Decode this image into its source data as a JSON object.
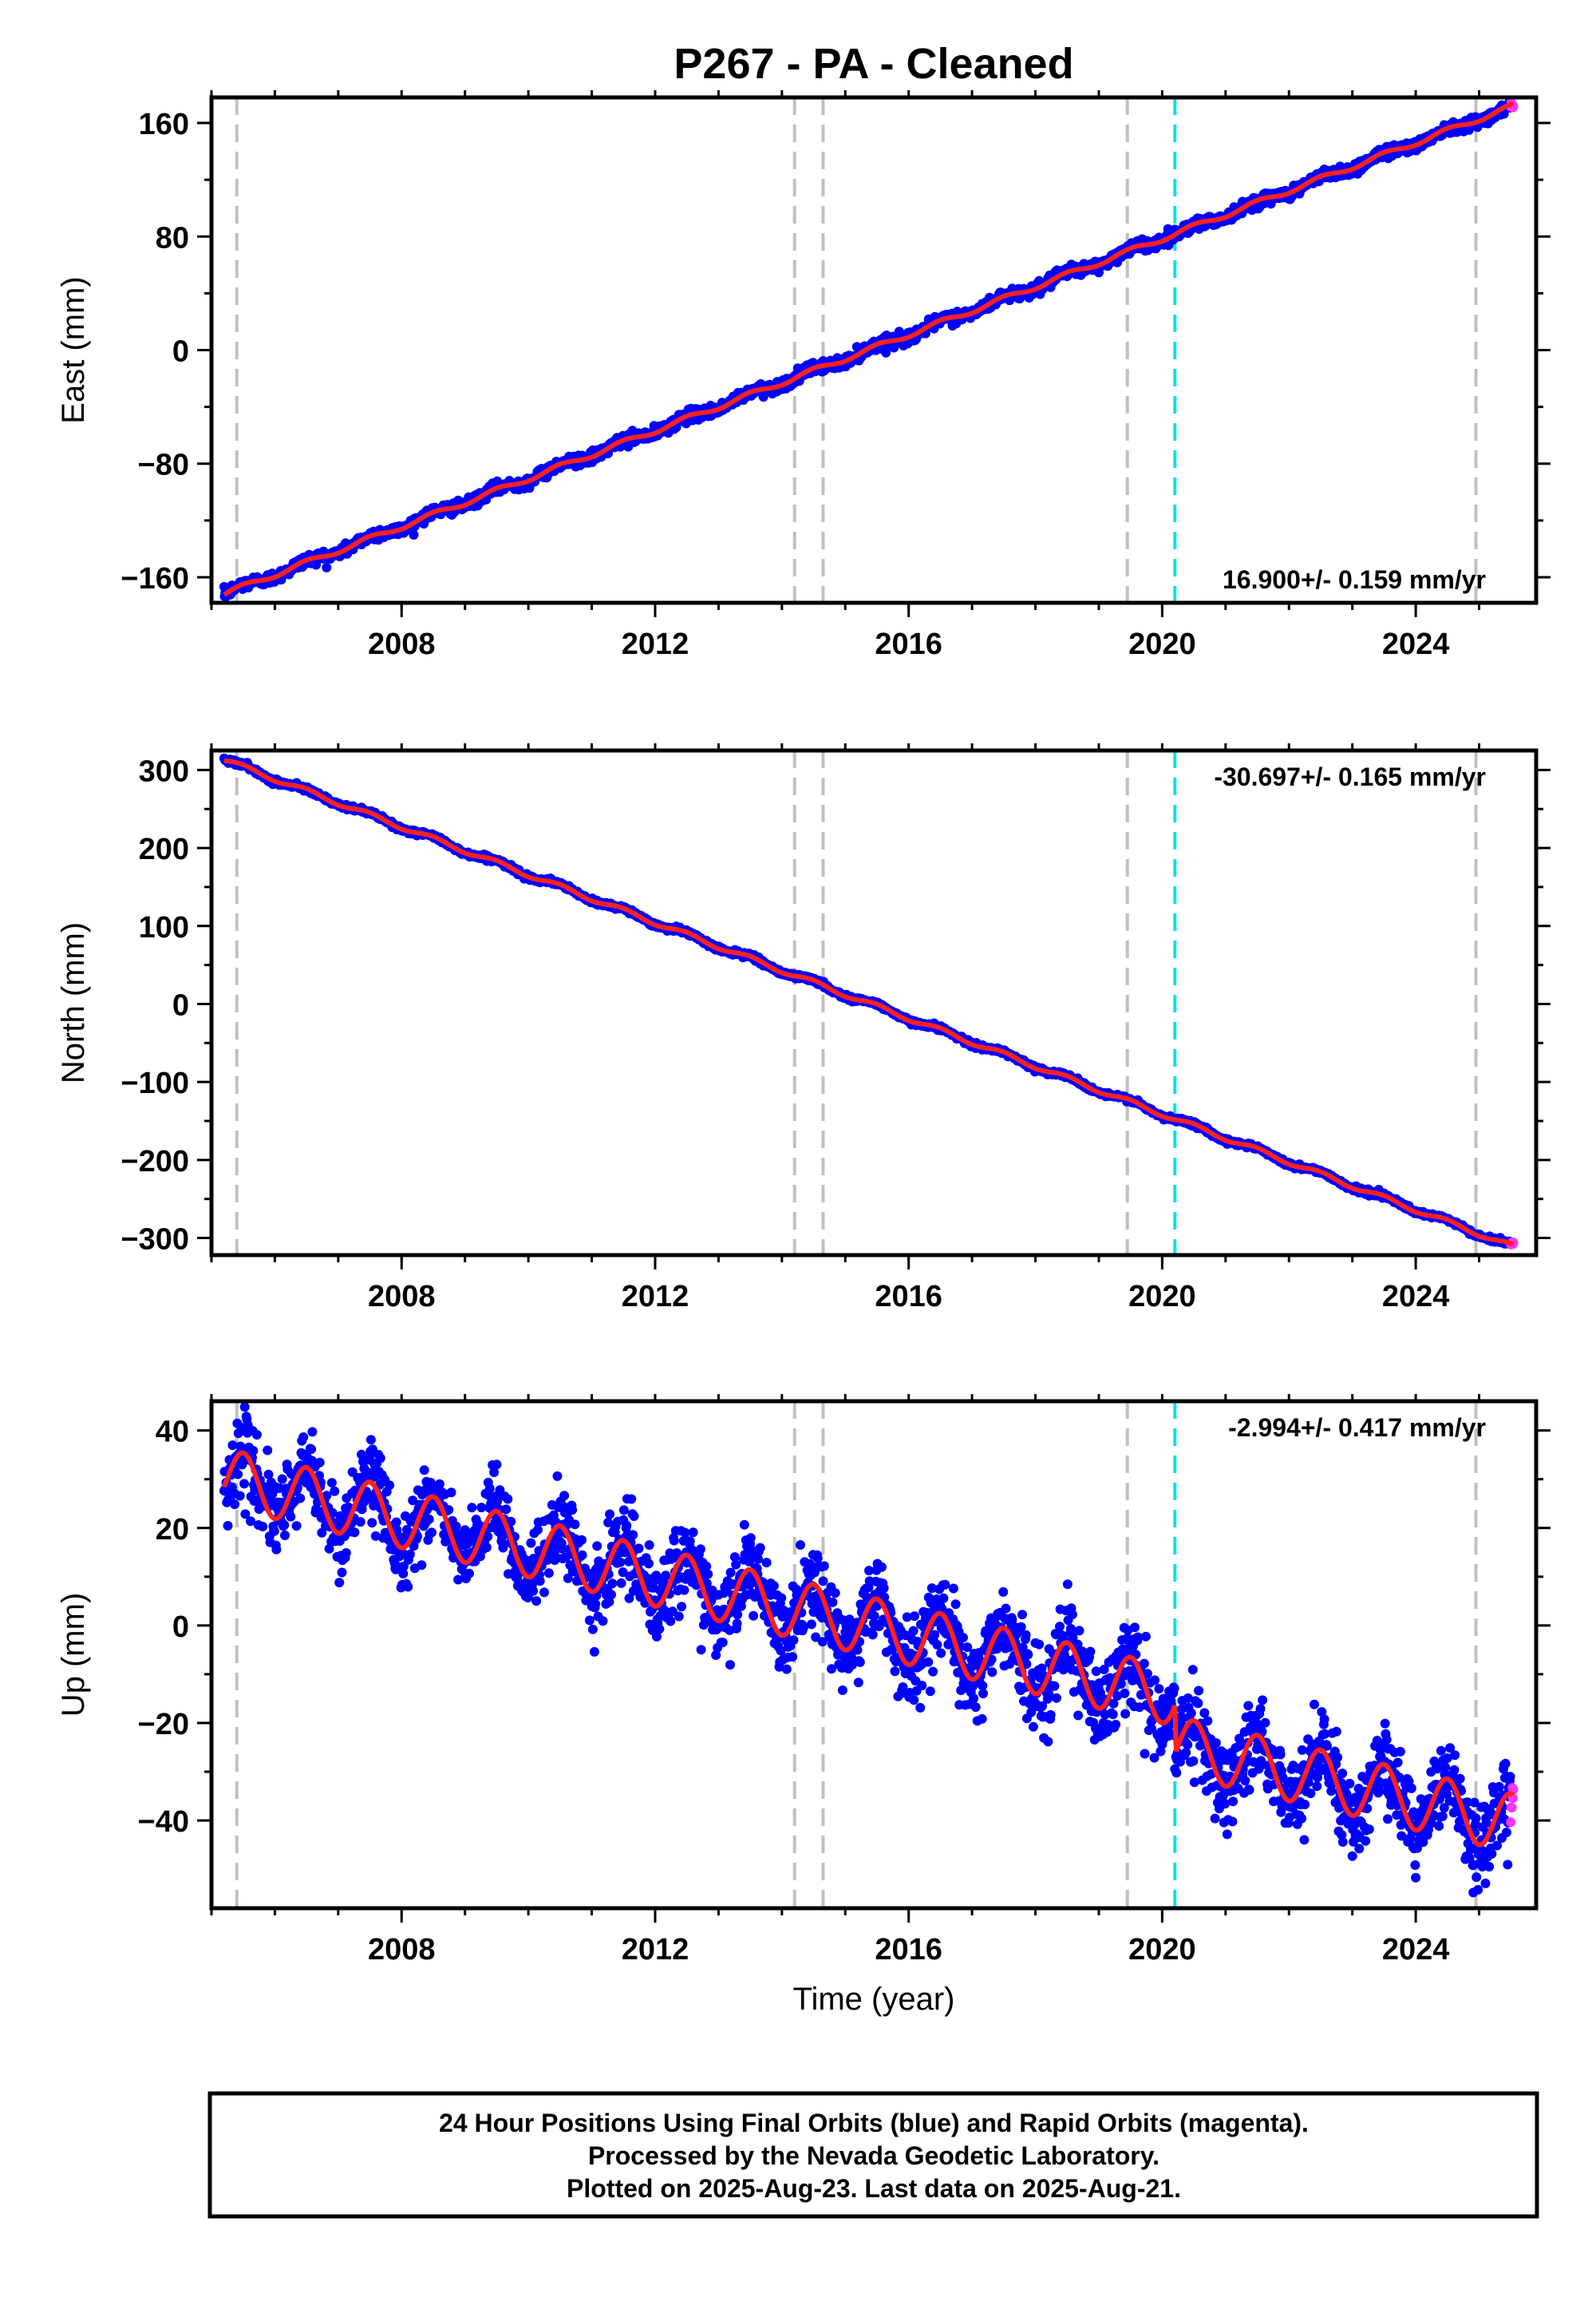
{
  "title": "P267  - PA - Cleaned",
  "xlabel": "Time (year)",
  "colors": {
    "final_points": "#0000ff",
    "rapid_points": "#ff33ff",
    "model_line": "#ff2020",
    "event_dashed": "#c0c0c0",
    "event_cyan": "#00e5e5"
  },
  "footer": {
    "line1": "24 Hour Positions Using Final Orbits (blue) and Rapid Orbits (magenta).",
    "line2": "Processed by the Nevada Geodetic Laboratory.",
    "line3": "Plotted on 2025-Aug-23. Last data on 2025-Aug-21."
  },
  "chart_data": [
    {
      "type": "scatter",
      "component": "East",
      "ylabel": "East (mm)",
      "rate_label": "16.900+/- 0.159 mm/yr",
      "rate_position": "bottom-right",
      "xlim": [
        2005.0,
        2025.9
      ],
      "ylim": [
        -178,
        178
      ],
      "xticks": [
        2008,
        2012,
        2016,
        2020,
        2024
      ],
      "xtick_labels": [
        "2008",
        "2012",
        "2016",
        "2020",
        "2024"
      ],
      "yticks": [
        -160,
        -80,
        0,
        80,
        160
      ],
      "ytick_labels": [
        "−160",
        "−80",
        "0",
        "80",
        "160"
      ],
      "event_lines_gray": [
        2005.4,
        2014.2,
        2014.65,
        2019.45,
        2024.95
      ],
      "event_lines_cyan": [
        2020.2
      ],
      "rate_mm_per_yr": 16.9,
      "anchor": {
        "x": 2005.3,
        "y": -170
      },
      "seasonal_amplitude_mm": 1.8,
      "noise_mm": 2.0,
      "data_start": 2005.2,
      "data_end": 2025.55,
      "rapid_start": 2025.5,
      "final_end": 2025.5,
      "steps": []
    },
    {
      "type": "scatter",
      "component": "North",
      "ylabel": "North (mm)",
      "rate_label": "-30.697+/- 0.165 mm/yr",
      "rate_position": "top-right",
      "xlim": [
        2005.0,
        2025.9
      ],
      "ylim": [
        -322,
        325
      ],
      "xticks": [
        2008,
        2012,
        2016,
        2020,
        2024
      ],
      "xtick_labels": [
        "2008",
        "2012",
        "2016",
        "2020",
        "2024"
      ],
      "yticks": [
        -300,
        -200,
        -100,
        0,
        100,
        200,
        300
      ],
      "ytick_labels": [
        "−300",
        "−200",
        "−100",
        "0",
        "100",
        "200",
        "300"
      ],
      "event_lines_gray": [
        2005.4,
        2014.2,
        2014.65,
        2019.45,
        2024.95
      ],
      "event_lines_cyan": [
        2020.2
      ],
      "rate_mm_per_yr": -30.697,
      "anchor": {
        "x": 2005.3,
        "y": 310
      },
      "seasonal_amplitude_mm": 3.0,
      "noise_mm": 1.5,
      "data_start": 2005.2,
      "data_end": 2025.55,
      "rapid_start": 2025.5,
      "final_end": 2025.5,
      "steps": []
    },
    {
      "type": "scatter",
      "component": "Up",
      "ylabel": "Up (mm)",
      "rate_label": "-2.994+/- 0.417 mm/yr",
      "rate_position": "top-right",
      "xlim": [
        2005.0,
        2025.9
      ],
      "ylim": [
        -58,
        46
      ],
      "xticks": [
        2008,
        2012,
        2016,
        2020,
        2024
      ],
      "xtick_labels": [
        "2008",
        "2012",
        "2016",
        "2020",
        "2024"
      ],
      "yticks": [
        -40,
        -20,
        0,
        20,
        40
      ],
      "ytick_labels": [
        "−40",
        "−20",
        "0",
        "20",
        "40"
      ],
      "event_lines_gray": [
        2005.4,
        2014.2,
        2014.65,
        2019.45,
        2024.95
      ],
      "event_lines_cyan": [
        2020.2
      ],
      "rate_mm_per_yr": -2.994,
      "anchor": {
        "x": 2005.3,
        "y": 30
      },
      "seasonal_amplitude_mm": 6.0,
      "noise_mm": 4.0,
      "data_start": 2005.2,
      "data_end": 2025.55,
      "rapid_start": 2025.5,
      "final_end": 2025.5,
      "steps": [
        {
          "x": 2020.2,
          "dy": -10
        }
      ]
    }
  ]
}
